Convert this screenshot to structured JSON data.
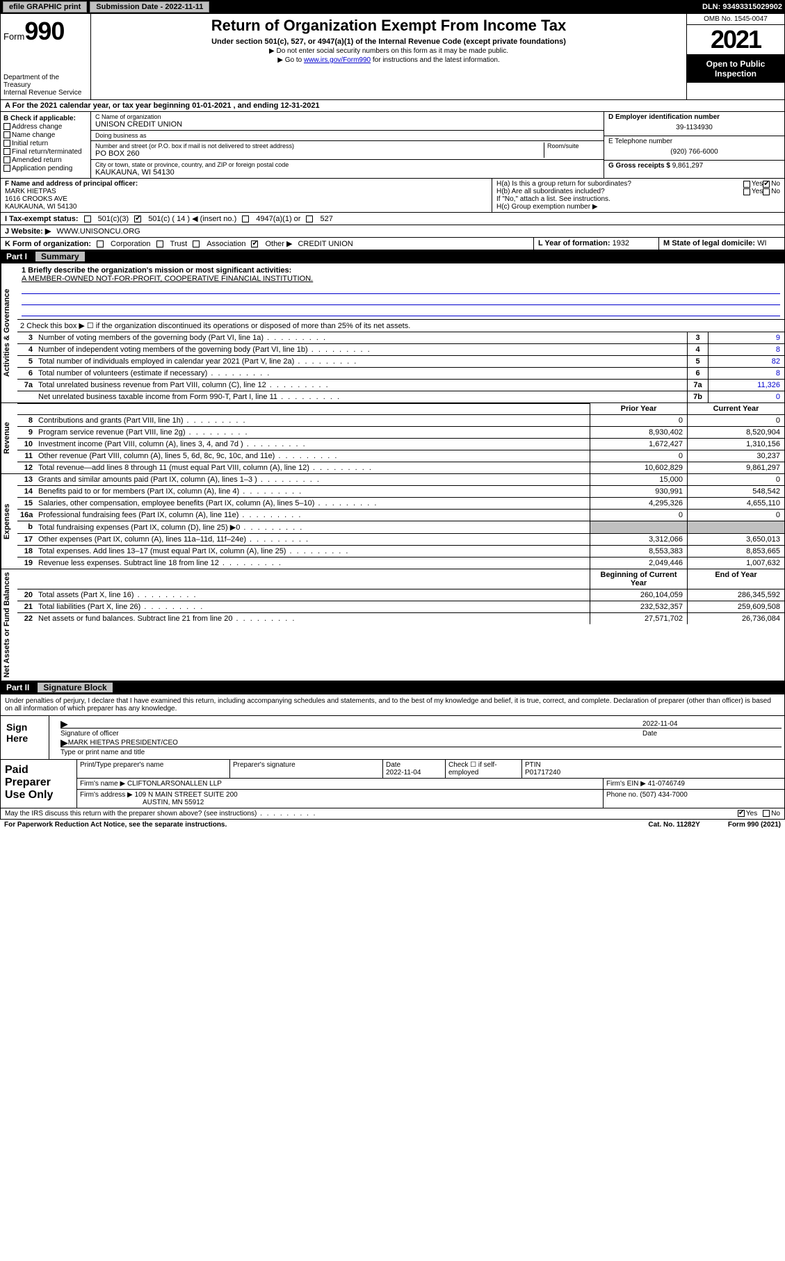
{
  "topbar": {
    "efile": "efile GRAPHIC print",
    "submission_label": "Submission Date - 2022-11-11",
    "dln": "DLN: 93493315029902"
  },
  "header": {
    "form_word": "Form",
    "form_num": "990",
    "dept": "Department of the Treasury",
    "irs": "Internal Revenue Service",
    "title": "Return of Organization Exempt From Income Tax",
    "sub1": "Under section 501(c), 527, or 4947(a)(1) of the Internal Revenue Code (except private foundations)",
    "sub2": "▶ Do not enter social security numbers on this form as it may be made public.",
    "sub3_pre": "▶ Go to ",
    "sub3_link": "www.irs.gov/Form990",
    "sub3_post": " for instructions and the latest information.",
    "omb": "OMB No. 1545-0047",
    "year": "2021",
    "open": "Open to Public Inspection"
  },
  "row_a": "A For the 2021 calendar year, or tax year beginning 01-01-2021   , and ending 12-31-2021",
  "col_b": {
    "hdr": "B Check if applicable:",
    "items": [
      "Address change",
      "Name change",
      "Initial return",
      "Final return/terminated",
      "Amended return",
      "Application pending"
    ]
  },
  "center": {
    "c_label": "C Name of organization",
    "c_name": "UNISON CREDIT UNION",
    "dba_label": "Doing business as",
    "dba": "",
    "addr_label": "Number and street (or P.O. box if mail is not delivered to street address)",
    "room_label": "Room/suite",
    "addr": "PO BOX 260",
    "city_label": "City or town, state or province, country, and ZIP or foreign postal code",
    "city": "KAUKAUNA, WI  54130"
  },
  "right": {
    "d_label": "D Employer identification number",
    "d_val": "39-1134930",
    "e_label": "E Telephone number",
    "e_val": "(920) 766-6000",
    "g_label": "G Gross receipts $",
    "g_val": "9,861,297"
  },
  "f_block": {
    "f_label": "F Name and address of principal officer:",
    "name": "MARK HIETPAS",
    "addr1": "1616 CROOKS AVE",
    "addr2": "KAUKAUNA, WI  54130"
  },
  "h_block": {
    "ha": "H(a)  Is this a group return for subordinates?",
    "ha_yes": "Yes",
    "ha_no": "No",
    "hb": "H(b)  Are all subordinates included?",
    "hb_note": "If \"No,\" attach a list. See instructions.",
    "hc": "H(c)  Group exemption number ▶"
  },
  "i_row": {
    "label": "I   Tax-exempt status:",
    "opt1": "501(c)(3)",
    "opt2": "501(c) ( 14 ) ◀ (insert no.)",
    "opt3": "4947(a)(1) or",
    "opt4": "527"
  },
  "j_row": {
    "label": "J   Website: ▶",
    "val": "WWW.UNISONCU.ORG"
  },
  "k_row": {
    "label": "K Form of organization:",
    "opts": [
      "Corporation",
      "Trust",
      "Association",
      "Other ▶"
    ],
    "other_val": "CREDIT UNION"
  },
  "l_row": {
    "label": "L Year of formation:",
    "val": "1932"
  },
  "m_row": {
    "label": "M State of legal domicile:",
    "val": "WI"
  },
  "part1": {
    "label": "Part I",
    "title": "Summary"
  },
  "summary": {
    "side_gov": "Activities & Governance",
    "side_rev": "Revenue",
    "side_exp": "Expenses",
    "side_net": "Net Assets or Fund Balances",
    "line1_label": "1   Briefly describe the organization's mission or most significant activities:",
    "line1_val": "A MEMBER-OWNED NOT-FOR-PROFIT, COOPERATIVE FINANCIAL INSTITUTION.",
    "line2": "2   Check this box ▶ ☐  if the organization discontinued its operations or disposed of more than 25% of its net assets.",
    "lines_simple": [
      {
        "n": "3",
        "d": "Number of voting members of the governing body (Part VI, line 1a)",
        "box": "3",
        "v": "9"
      },
      {
        "n": "4",
        "d": "Number of independent voting members of the governing body (Part VI, line 1b)",
        "box": "4",
        "v": "8"
      },
      {
        "n": "5",
        "d": "Total number of individuals employed in calendar year 2021 (Part V, line 2a)",
        "box": "5",
        "v": "82"
      },
      {
        "n": "6",
        "d": "Total number of volunteers (estimate if necessary)",
        "box": "6",
        "v": "8"
      },
      {
        "n": "7a",
        "d": "Total unrelated business revenue from Part VIII, column (C), line 12",
        "box": "7a",
        "v": "11,326"
      },
      {
        "n": "",
        "d": "Net unrelated business taxable income from Form 990-T, Part I, line 11",
        "box": "7b",
        "v": "0"
      }
    ],
    "col_hdr_prior": "Prior Year",
    "col_hdr_current": "Current Year",
    "revenue": [
      {
        "n": "8",
        "d": "Contributions and grants (Part VIII, line 1h)",
        "p": "0",
        "c": "0"
      },
      {
        "n": "9",
        "d": "Program service revenue (Part VIII, line 2g)",
        "p": "8,930,402",
        "c": "8,520,904"
      },
      {
        "n": "10",
        "d": "Investment income (Part VIII, column (A), lines 3, 4, and 7d )",
        "p": "1,672,427",
        "c": "1,310,156"
      },
      {
        "n": "11",
        "d": "Other revenue (Part VIII, column (A), lines 5, 6d, 8c, 9c, 10c, and 11e)",
        "p": "0",
        "c": "30,237"
      },
      {
        "n": "12",
        "d": "Total revenue—add lines 8 through 11 (must equal Part VIII, column (A), line 12)",
        "p": "10,602,829",
        "c": "9,861,297"
      }
    ],
    "expenses": [
      {
        "n": "13",
        "d": "Grants and similar amounts paid (Part IX, column (A), lines 1–3 )",
        "p": "15,000",
        "c": "0"
      },
      {
        "n": "14",
        "d": "Benefits paid to or for members (Part IX, column (A), line 4)",
        "p": "930,991",
        "c": "548,542"
      },
      {
        "n": "15",
        "d": "Salaries, other compensation, employee benefits (Part IX, column (A), lines 5–10)",
        "p": "4,295,326",
        "c": "4,655,110"
      },
      {
        "n": "16a",
        "d": "Professional fundraising fees (Part IX, column (A), line 11e)",
        "p": "0",
        "c": "0"
      },
      {
        "n": "b",
        "d": "Total fundraising expenses (Part IX, column (D), line 25) ▶0",
        "p": "",
        "c": "",
        "shade": true
      },
      {
        "n": "17",
        "d": "Other expenses (Part IX, column (A), lines 11a–11d, 11f–24e)",
        "p": "3,312,066",
        "c": "3,650,013"
      },
      {
        "n": "18",
        "d": "Total expenses. Add lines 13–17 (must equal Part IX, column (A), line 25)",
        "p": "8,553,383",
        "c": "8,853,665"
      },
      {
        "n": "19",
        "d": "Revenue less expenses. Subtract line 18 from line 12",
        "p": "2,049,446",
        "c": "1,007,632"
      }
    ],
    "col_hdr_beg": "Beginning of Current Year",
    "col_hdr_end": "End of Year",
    "net": [
      {
        "n": "20",
        "d": "Total assets (Part X, line 16)",
        "p": "260,104,059",
        "c": "286,345,592"
      },
      {
        "n": "21",
        "d": "Total liabilities (Part X, line 26)",
        "p": "232,532,357",
        "c": "259,609,508"
      },
      {
        "n": "22",
        "d": "Net assets or fund balances. Subtract line 21 from line 20",
        "p": "27,571,702",
        "c": "26,736,084"
      }
    ]
  },
  "part2": {
    "label": "Part II",
    "title": "Signature Block"
  },
  "sig": {
    "decl": "Under penalties of perjury, I declare that I have examined this return, including accompanying schedules and statements, and to the best of my knowledge and belief, it is true, correct, and complete. Declaration of preparer (other than officer) is based on all information of which preparer has any knowledge.",
    "sign_here": "Sign Here",
    "sig_officer": "Signature of officer",
    "date": "Date",
    "date_val": "2022-11-04",
    "name_title": "MARK HIETPAS  PRESIDENT/CEO",
    "type_name": "Type or print name and title"
  },
  "prep": {
    "label": "Paid Preparer Use Only",
    "r1": {
      "c1": "Print/Type preparer's name",
      "c2": "Preparer's signature",
      "c3": "Date",
      "c3v": "2022-11-04",
      "c4": "Check ☐ if self-employed",
      "c5": "PTIN",
      "c5v": "P01717240"
    },
    "r2": {
      "lbl": "Firm's name      ▶",
      "val": "CLIFTONLARSONALLEN LLP",
      "ein_lbl": "Firm's EIN ▶",
      "ein": "41-0746749"
    },
    "r3": {
      "lbl": "Firm's address ▶",
      "val": "109 N MAIN STREET SUITE 200",
      "phone_lbl": "Phone no.",
      "phone": "(507) 434-7000"
    },
    "r3b": {
      "val": "AUSTIN, MN  55912"
    }
  },
  "footer": {
    "discuss": "May the IRS discuss this return with the preparer shown above? (see instructions)",
    "yes": "Yes",
    "no": "No",
    "paperwork": "For Paperwork Reduction Act Notice, see the separate instructions.",
    "cat": "Cat. No. 11282Y",
    "form": "Form 990 (2021)"
  },
  "colors": {
    "link": "#0000cc",
    "shade": "#c0c0c0",
    "black": "#000000"
  }
}
